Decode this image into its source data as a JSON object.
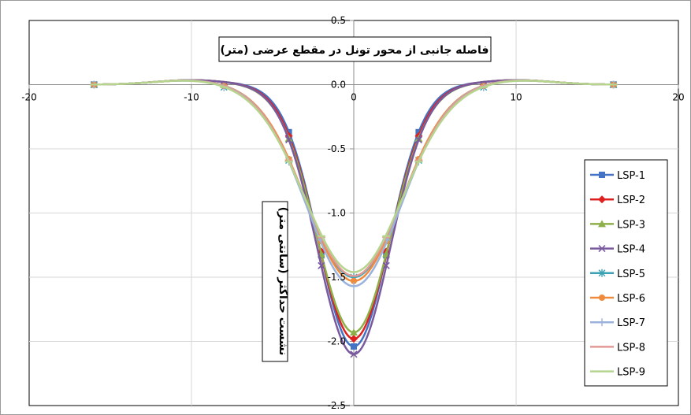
{
  "chart_data": {
    "type": "line",
    "title": "",
    "xlabel": "فاصله جانبی از محور تونل در مقطع عرضی (متر)",
    "ylabel": "نشست حداکثر (سانتی متر)",
    "xlim": [
      -20,
      20
    ],
    "ylim": [
      -2.5,
      0.5
    ],
    "xticks": [
      -20,
      -10,
      0,
      10,
      20
    ],
    "yticks": [
      0.5,
      0.0,
      -0.5,
      -1.0,
      -1.5,
      -2.0,
      -2.5
    ],
    "xtick_labels": [
      "-20",
      "-10",
      "0",
      "10",
      "20"
    ],
    "ytick_labels": [
      "0.5",
      "0.0",
      "-0.5",
      "-1.0",
      "-1.5",
      "-2.0",
      "-2.5"
    ],
    "grid": true,
    "legend_position": "right",
    "x_markers": [
      -16,
      -8,
      -4,
      -2,
      0,
      2,
      4,
      8,
      16
    ],
    "series": [
      {
        "name": "LSP-1",
        "color": "#4472C4",
        "marker": "square",
        "max": 2.04,
        "y": [
          0,
          0,
          -0.37,
          -1.33,
          -2.04,
          -1.33,
          -0.37,
          0,
          0
        ]
      },
      {
        "name": "LSP-2",
        "color": "#E02020",
        "marker": "diamond",
        "max": 1.98,
        "y": [
          0,
          0,
          -0.4,
          -1.3,
          -1.98,
          -1.3,
          -0.4,
          0,
          0
        ]
      },
      {
        "name": "LSP-3",
        "color": "#8DB04A",
        "marker": "triangle",
        "max": 1.93,
        "y": [
          0,
          0,
          -0.42,
          -1.32,
          -1.93,
          -1.32,
          -0.42,
          0,
          0
        ]
      },
      {
        "name": "LSP-4",
        "color": "#7A5A9E",
        "marker": "x",
        "max": 2.1,
        "y": [
          0,
          0,
          -0.43,
          -1.41,
          -2.1,
          -1.41,
          -0.43,
          0,
          0
        ]
      },
      {
        "name": "LSP-5",
        "color": "#3BA3B5",
        "marker": "star",
        "max": 1.5,
        "y": [
          0,
          -0.02,
          -0.59,
          -1.2,
          -1.5,
          -1.2,
          -0.59,
          -0.02,
          0
        ]
      },
      {
        "name": "LSP-6",
        "color": "#F08A3C",
        "marker": "circle",
        "max": 1.53,
        "y": [
          0,
          -0.01,
          -0.58,
          -1.22,
          -1.53,
          -1.22,
          -0.58,
          -0.01,
          0
        ]
      },
      {
        "name": "LSP-7",
        "color": "#9BB3DC",
        "marker": "plus",
        "max": 1.57,
        "y": [
          0,
          -0.02,
          -0.6,
          -1.21,
          -1.57,
          -1.21,
          -0.6,
          -0.02,
          0
        ]
      },
      {
        "name": "LSP-8",
        "color": "#E39A96",
        "marker": "dash",
        "max": 1.49,
        "y": [
          0,
          -0.01,
          -0.59,
          -1.19,
          -1.49,
          -1.19,
          -0.59,
          -0.01,
          0
        ]
      },
      {
        "name": "LSP-9",
        "color": "#B5D58E",
        "marker": "dash",
        "max": 1.46,
        "y": [
          0,
          -0.02,
          -0.6,
          -1.18,
          -1.46,
          -1.18,
          -0.6,
          -0.02,
          0
        ]
      }
    ]
  }
}
